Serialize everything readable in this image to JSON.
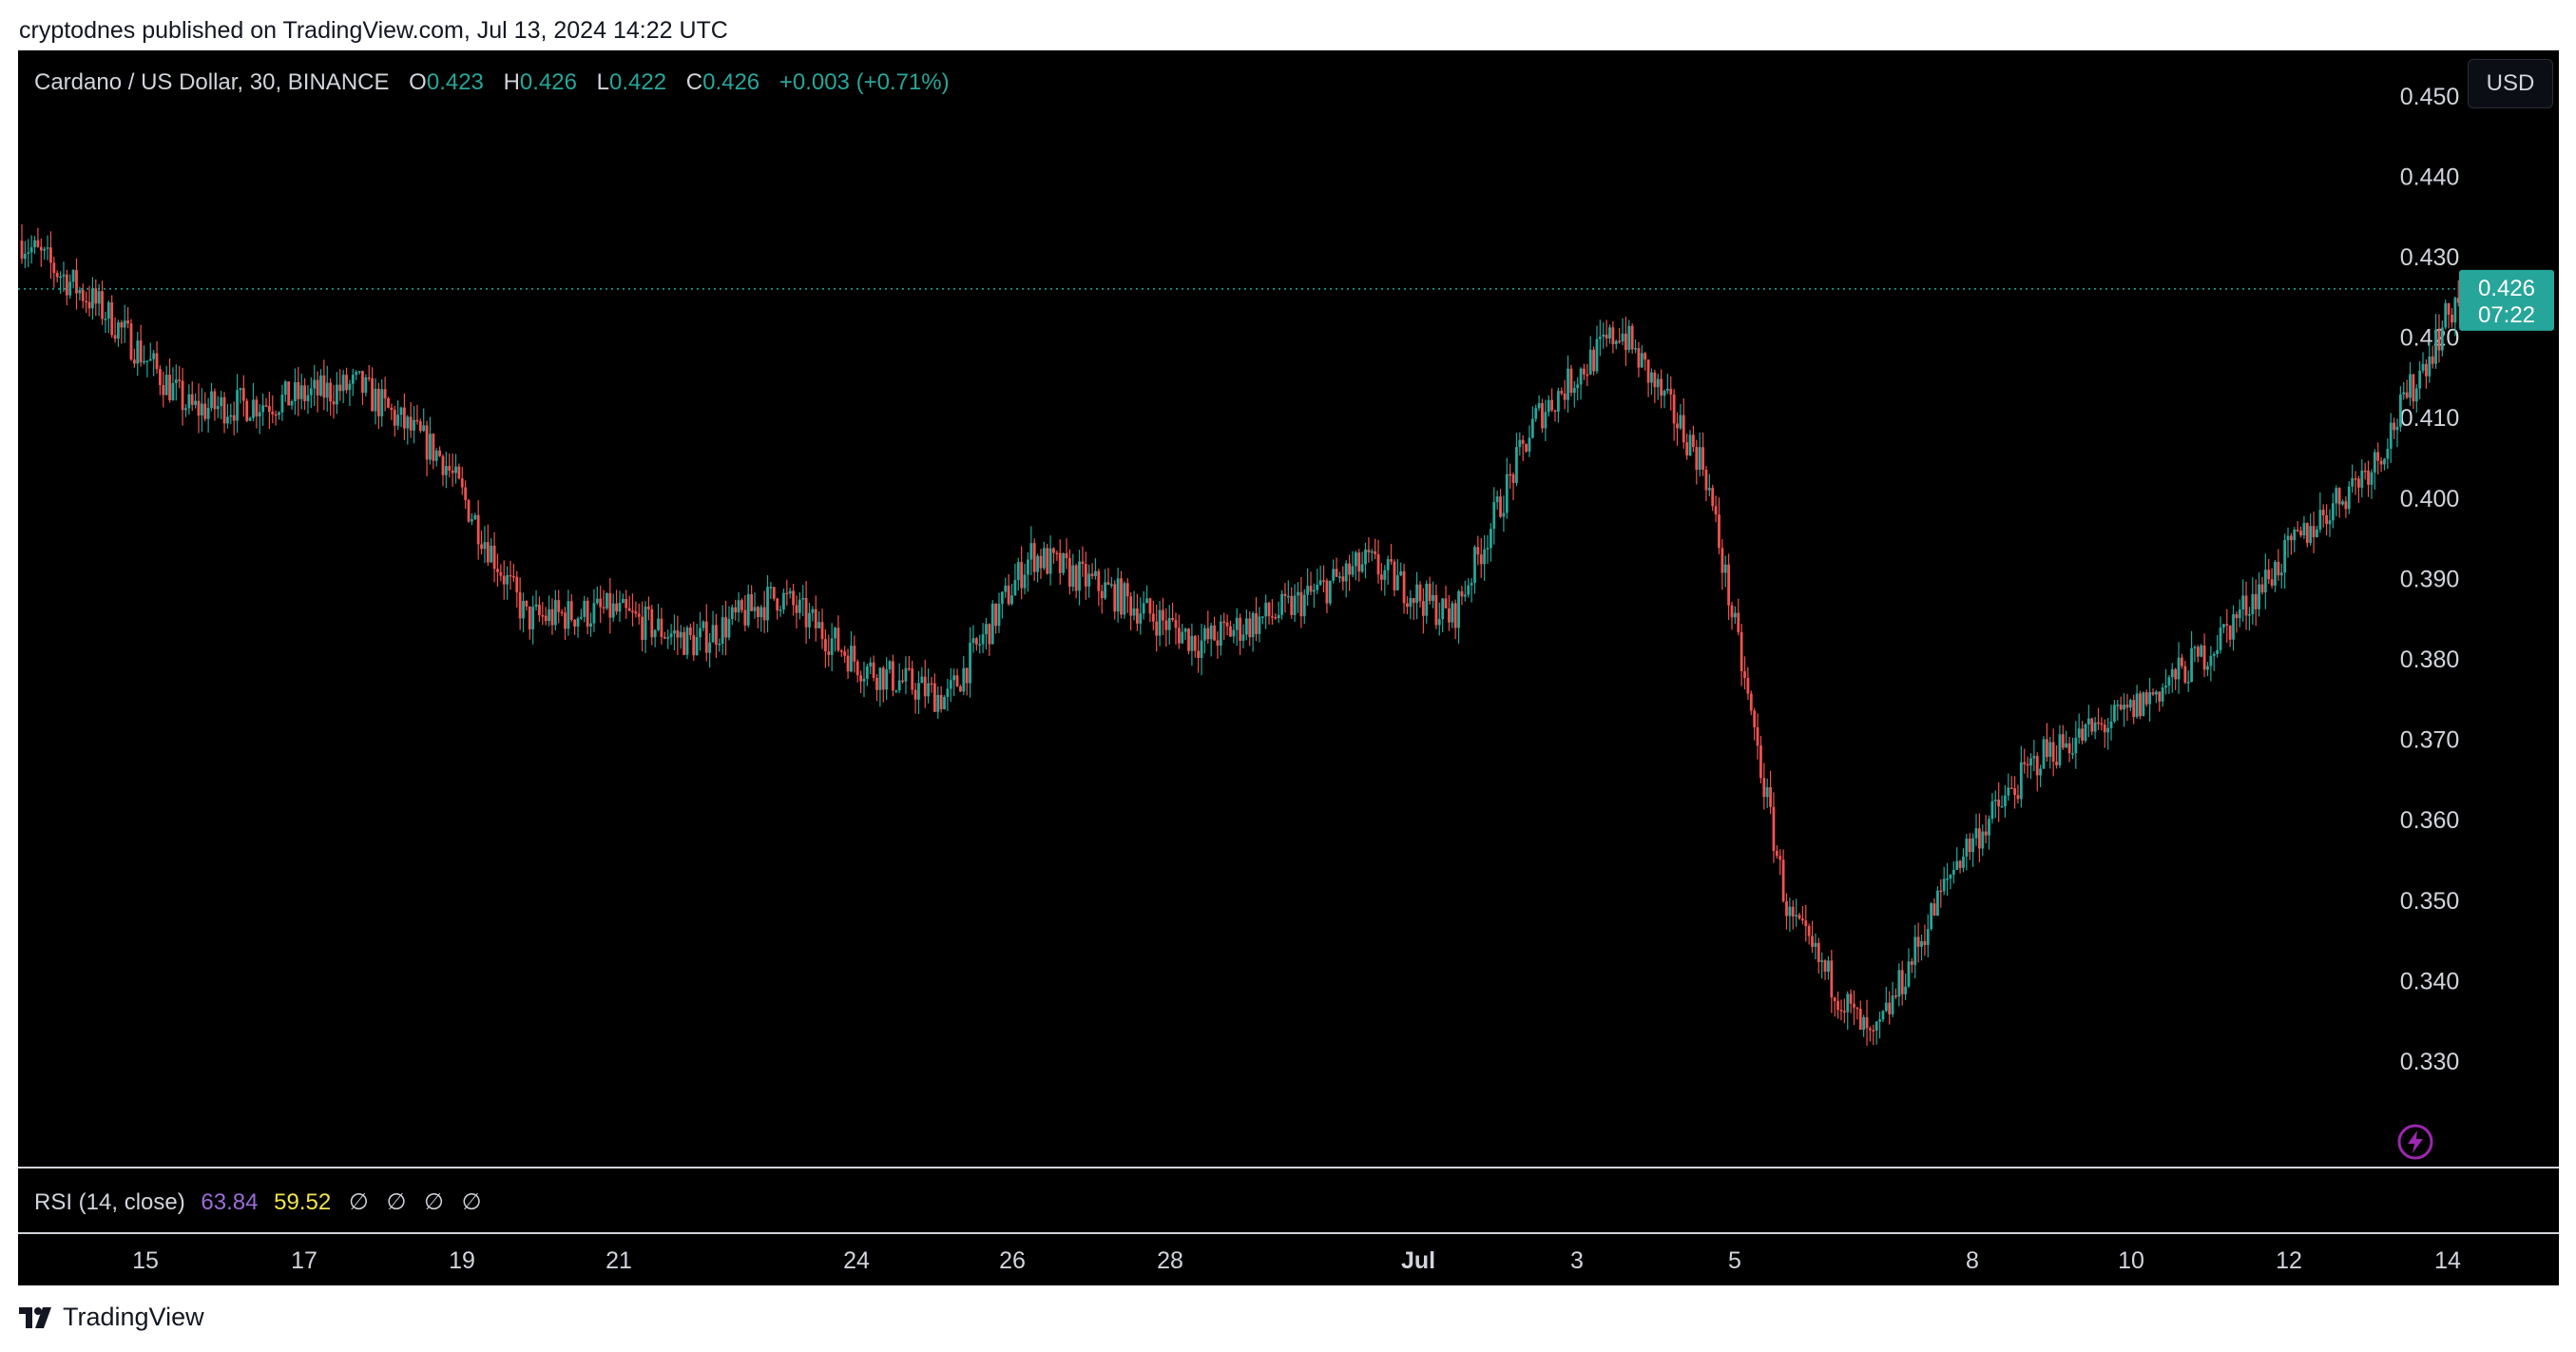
{
  "page": {
    "credit": "cryptodnes published on TradingView.com, Jul 13, 2024 14:22 UTC",
    "footer_brand": "TradingView"
  },
  "header": {
    "symbol": "Cardano / US Dollar, 30, BINANCE",
    "o_label": "O",
    "o_value": "0.423",
    "h_label": "H",
    "h_value": "0.426",
    "l_label": "L",
    "l_value": "0.422",
    "c_label": "C",
    "c_value": "0.426",
    "change": "+0.003 (+0.71%)"
  },
  "currency_button": "USD",
  "rsi": {
    "label": "RSI (14, close)",
    "value1": "63.84",
    "value2": "59.52",
    "na": [
      "∅",
      "∅",
      "∅",
      "∅"
    ]
  },
  "colors": {
    "up": "#26a69a",
    "down": "#ef5350",
    "rsi_line": "#9c6cd8",
    "rsi_ma": "#f2e44a",
    "background": "#000000"
  },
  "chart_data": {
    "type": "candlestick",
    "title": "Cardano / US Dollar, 30, BINANCE",
    "ylim": [
      0.324,
      0.457
    ],
    "y_ticks": [
      "0.330",
      "0.340",
      "0.350",
      "0.360",
      "0.370",
      "0.380",
      "0.390",
      "0.400",
      "0.410",
      "0.420",
      "0.430",
      "0.440",
      "0.450"
    ],
    "x_ticks": [
      "15",
      "17",
      "19",
      "21",
      "24",
      "26",
      "28",
      "Jul",
      "3",
      "5",
      "8",
      "10",
      "12",
      "14"
    ],
    "last_price": "0.426",
    "countdown": "07:22",
    "price_series": {
      "x": [
        "Jun 14",
        "Jun 15",
        "Jun 16",
        "Jun 17",
        "Jun 18",
        "Jun 19",
        "Jun 20",
        "Jun 21",
        "Jun 22",
        "Jun 23",
        "Jun 24",
        "Jun 25",
        "Jun 26",
        "Jun 27",
        "Jun 28",
        "Jun 29",
        "Jun 30",
        "Jul 1",
        "Jul 2",
        "Jul 3",
        "Jul 4",
        "Jul 5",
        "Jul 6",
        "Jul 7",
        "Jul 8",
        "Jul 9",
        "Jul 10",
        "Jul 11",
        "Jul 12",
        "Jul 13"
      ],
      "y": [
        0.432,
        0.423,
        0.411,
        0.412,
        0.414,
        0.405,
        0.385,
        0.386,
        0.382,
        0.388,
        0.379,
        0.375,
        0.393,
        0.388,
        0.382,
        0.386,
        0.392,
        0.385,
        0.41,
        0.421,
        0.404,
        0.348,
        0.332,
        0.355,
        0.368,
        0.373,
        0.381,
        0.394,
        0.405,
        0.426
      ]
    }
  }
}
